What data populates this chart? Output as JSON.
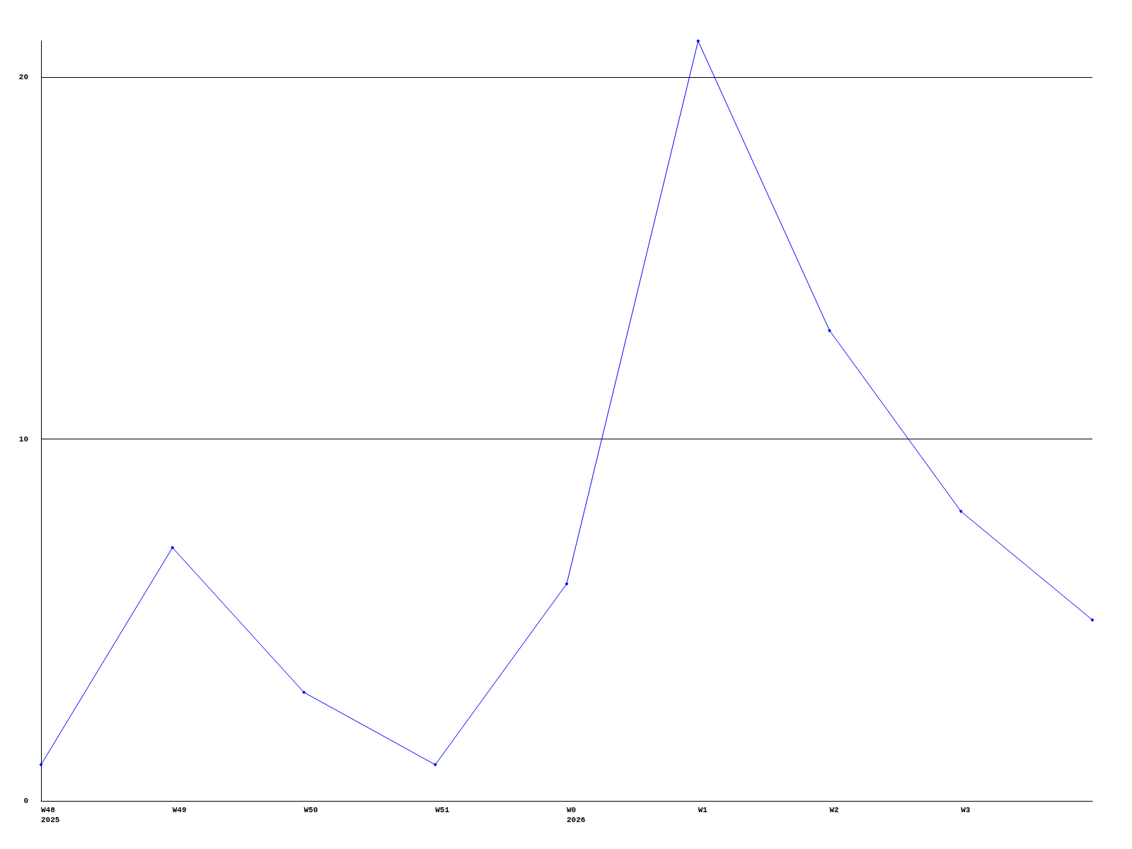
{
  "chart_data": {
    "type": "line",
    "categories": [
      "W48\n2025",
      "W49",
      "W50",
      "W51",
      "W0\n2026",
      "W1",
      "W2",
      "W3",
      null
    ],
    "values": [
      1,
      7,
      3,
      1,
      6,
      21,
      13,
      8,
      5
    ],
    "color": "#0000ff",
    "ylim": [
      0,
      21
    ],
    "yticks": [
      0,
      10,
      20
    ],
    "grid": "y",
    "marker": "diamond"
  }
}
